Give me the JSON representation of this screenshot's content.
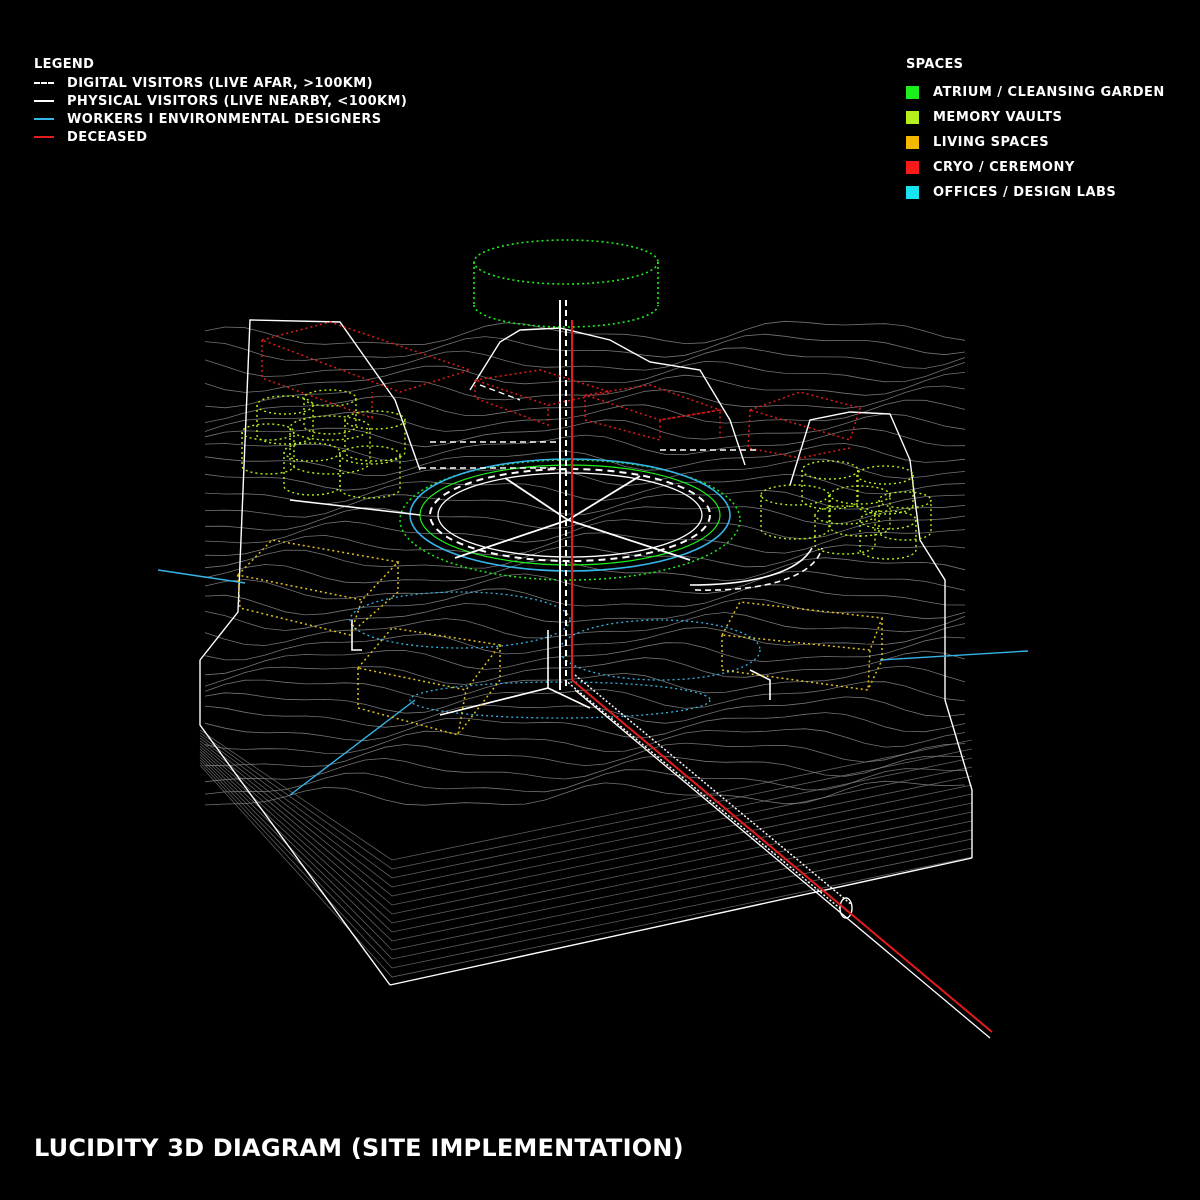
{
  "legend": {
    "heading": "LEGEND",
    "items": [
      {
        "label": "DIGITAL VISITORS (LIVE AFAR, >100KM)",
        "color": "#ffffff",
        "style": "dashed"
      },
      {
        "label": "PHYSICAL VISITORS (LIVE NEARBY, <100KM)",
        "color": "#ffffff",
        "style": "solid"
      },
      {
        "label": "WORKERS I ENVIRONMENTAL DESIGNERS",
        "color": "#35b4e6",
        "style": "solid"
      },
      {
        "label": "DECEASED",
        "color": "#e21b1b",
        "style": "solid"
      }
    ]
  },
  "spaces": {
    "heading": "SPACES",
    "items": [
      {
        "label": "ATRIUM / CLEANSING GARDEN",
        "color": "#1cf01c"
      },
      {
        "label": "MEMORY VAULTS",
        "color": "#b5f01c"
      },
      {
        "label": "LIVING SPACES",
        "color": "#f5b800"
      },
      {
        "label": "CRYO / CEREMONY",
        "color": "#ff1a1a"
      },
      {
        "label": "OFFICES / DESIGN LABS",
        "color": "#18e4f0"
      }
    ]
  },
  "title": "LUCIDITY 3D DIAGRAM (SITE IMPLEMENTATION)",
  "colors": {
    "background": "#000000",
    "terrain": "#ffffff",
    "contour": "#9a9a9a",
    "atrium": "#1cf01c",
    "vaults": "#b5f01c",
    "living": "#e0c020",
    "cryo": "#e21b1b",
    "workers": "#35b4e6"
  }
}
